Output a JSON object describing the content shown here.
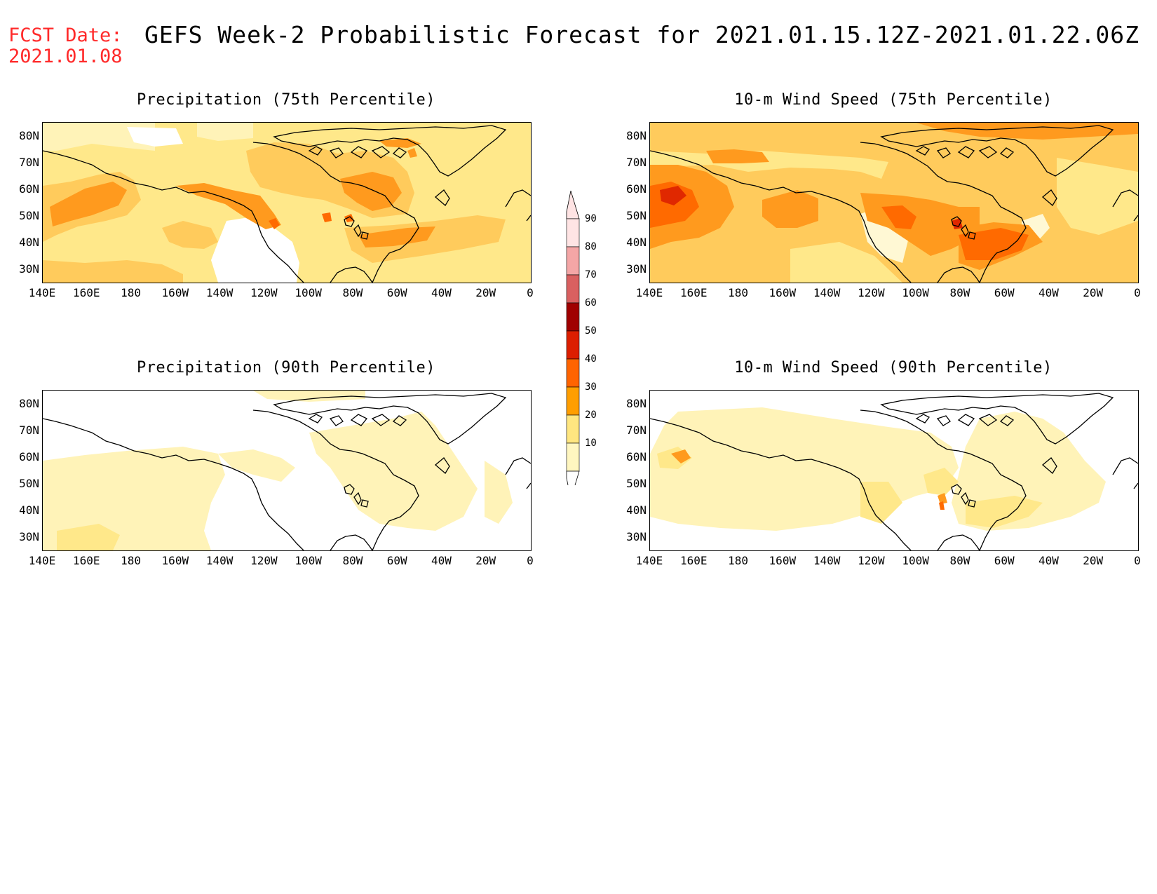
{
  "header": {
    "fcst_label": "FCST Date:",
    "fcst_date": "2021.01.08",
    "title": "GEFS Week-2 Probabilistic Forecast for 2021.01.15.12Z-2021.01.22.06Z"
  },
  "panels": [
    {
      "title": "Precipitation (75th Percentile)"
    },
    {
      "title": "10-m Wind Speed (75th Percentile)"
    },
    {
      "title": "Precipitation (90th Percentile)"
    },
    {
      "title": "10-m Wind Speed (90th Percentile)"
    }
  ],
  "axes": {
    "lat_labels": [
      "80N",
      "70N",
      "60N",
      "50N",
      "40N",
      "30N"
    ],
    "lon_labels": [
      "140E",
      "160E",
      "180",
      "160W",
      "140W",
      "120W",
      "100W",
      "80W",
      "60W",
      "40W",
      "20W",
      "0"
    ]
  },
  "colorbar": {
    "labels": [
      "90",
      "80",
      "70",
      "60",
      "50",
      "40",
      "30",
      "20",
      "10"
    ],
    "colors": [
      "#ffe4e4",
      "#f4a6a6",
      "#d96060",
      "#a00000",
      "#dc1e00",
      "#ff6400",
      "#ff9e00",
      "#ffe680",
      "#fff6c0"
    ]
  },
  "fill_colors": {
    "lightest": "#fff3b8",
    "light": "#ffe88a",
    "mid": "#ffcb5c",
    "orange": "#ff9a1e",
    "dark_orange": "#ff6a00",
    "red": "#e02800"
  }
}
